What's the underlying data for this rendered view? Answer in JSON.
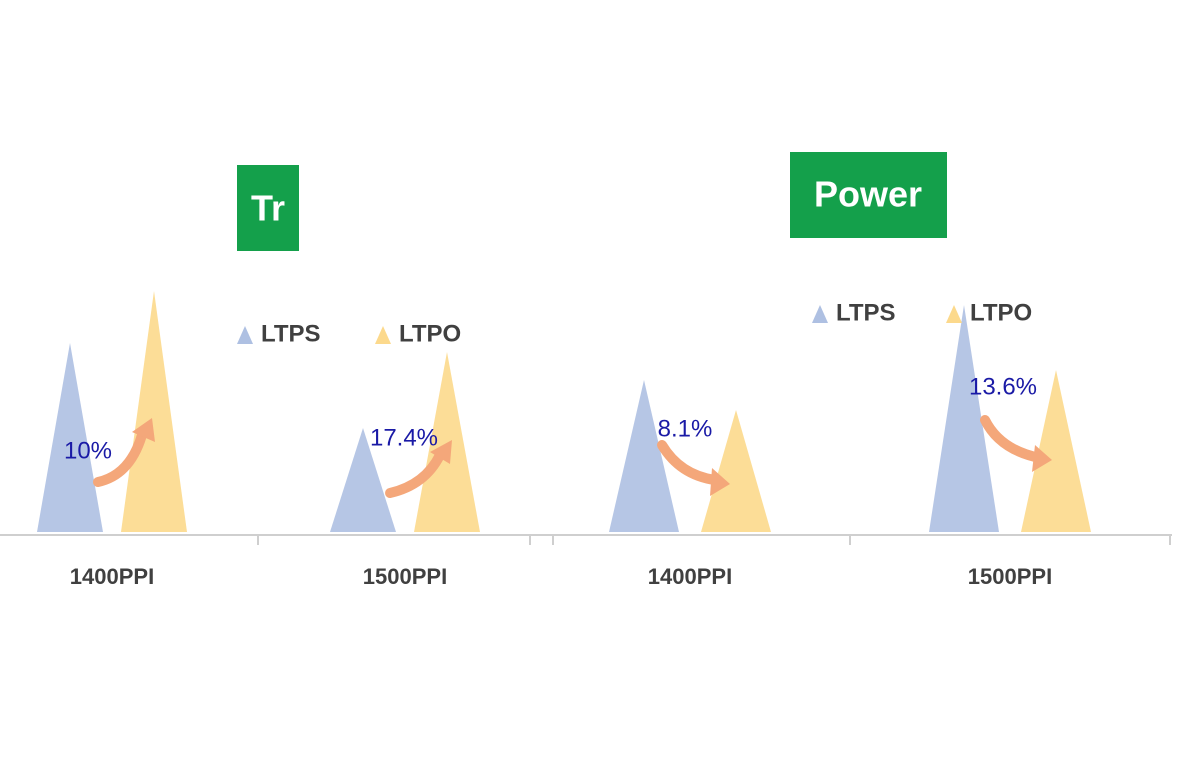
{
  "chart_data": [
    {
      "type": "triangle",
      "title": "Tr",
      "categories": [
        "1400PPI",
        "1500PPI"
      ],
      "series": [
        {
          "name": "LTPS",
          "color": "#aec0e2",
          "values": [
            189,
            104
          ]
        },
        {
          "name": "LTPO",
          "color": "#fcd98c",
          "values": [
            241,
            180
          ]
        }
      ],
      "ylim": [
        0,
        250
      ],
      "annotations": [
        "10%",
        "17.4%"
      ]
    },
    {
      "type": "triangle",
      "title": "Power",
      "categories": [
        "1400PPI",
        "1500PPI"
      ],
      "series": [
        {
          "name": "LTPS",
          "color": "#aec0e2",
          "values": [
            152,
            227
          ]
        },
        {
          "name": "LTPO",
          "color": "#fcd98c",
          "values": [
            122,
            162
          ]
        }
      ],
      "ylim": [
        0,
        250
      ],
      "annotations": [
        "8.1%",
        "13.6%"
      ]
    }
  ]
}
